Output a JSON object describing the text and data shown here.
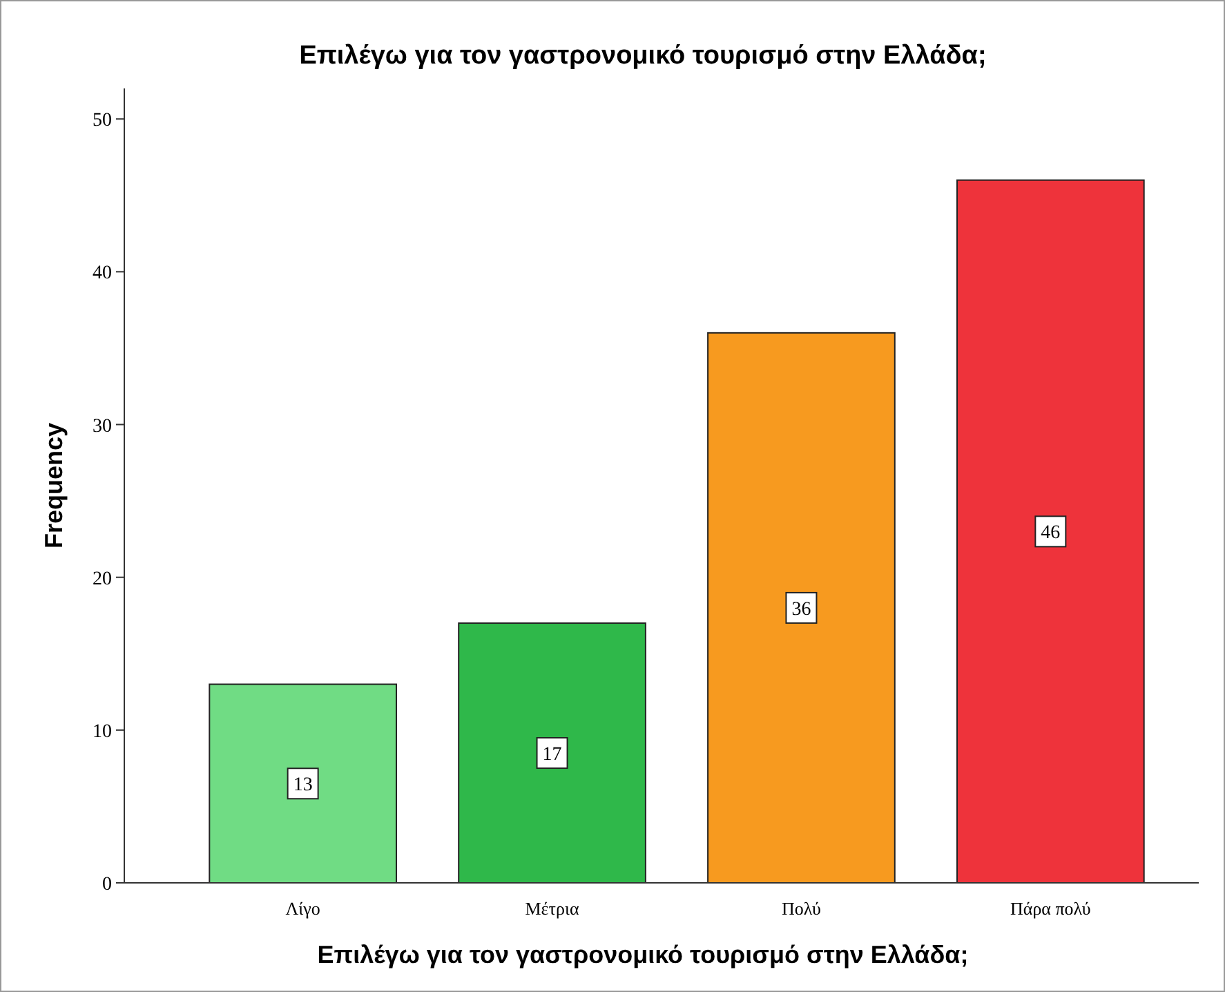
{
  "chart_data": {
    "type": "bar",
    "title": "Επιλέγω για τον γαστρονομικό τουρισμό στην Ελλάδα;",
    "xlabel": "Επιλέγω για τον γαστρονομικό τουρισμό στην Ελλάδα;",
    "ylabel": "Frequency",
    "categories": [
      "Λίγο",
      "Μέτρια",
      "Πολύ",
      "Πάρα πολύ"
    ],
    "values": [
      13,
      17,
      36,
      46
    ],
    "colors": [
      "#70dc84",
      "#2fb84a",
      "#f79a1f",
      "#ee333b"
    ],
    "ylim": [
      0,
      52
    ],
    "yticks": [
      0,
      10,
      20,
      30,
      40,
      50
    ],
    "grid": false,
    "data_labels": true
  }
}
